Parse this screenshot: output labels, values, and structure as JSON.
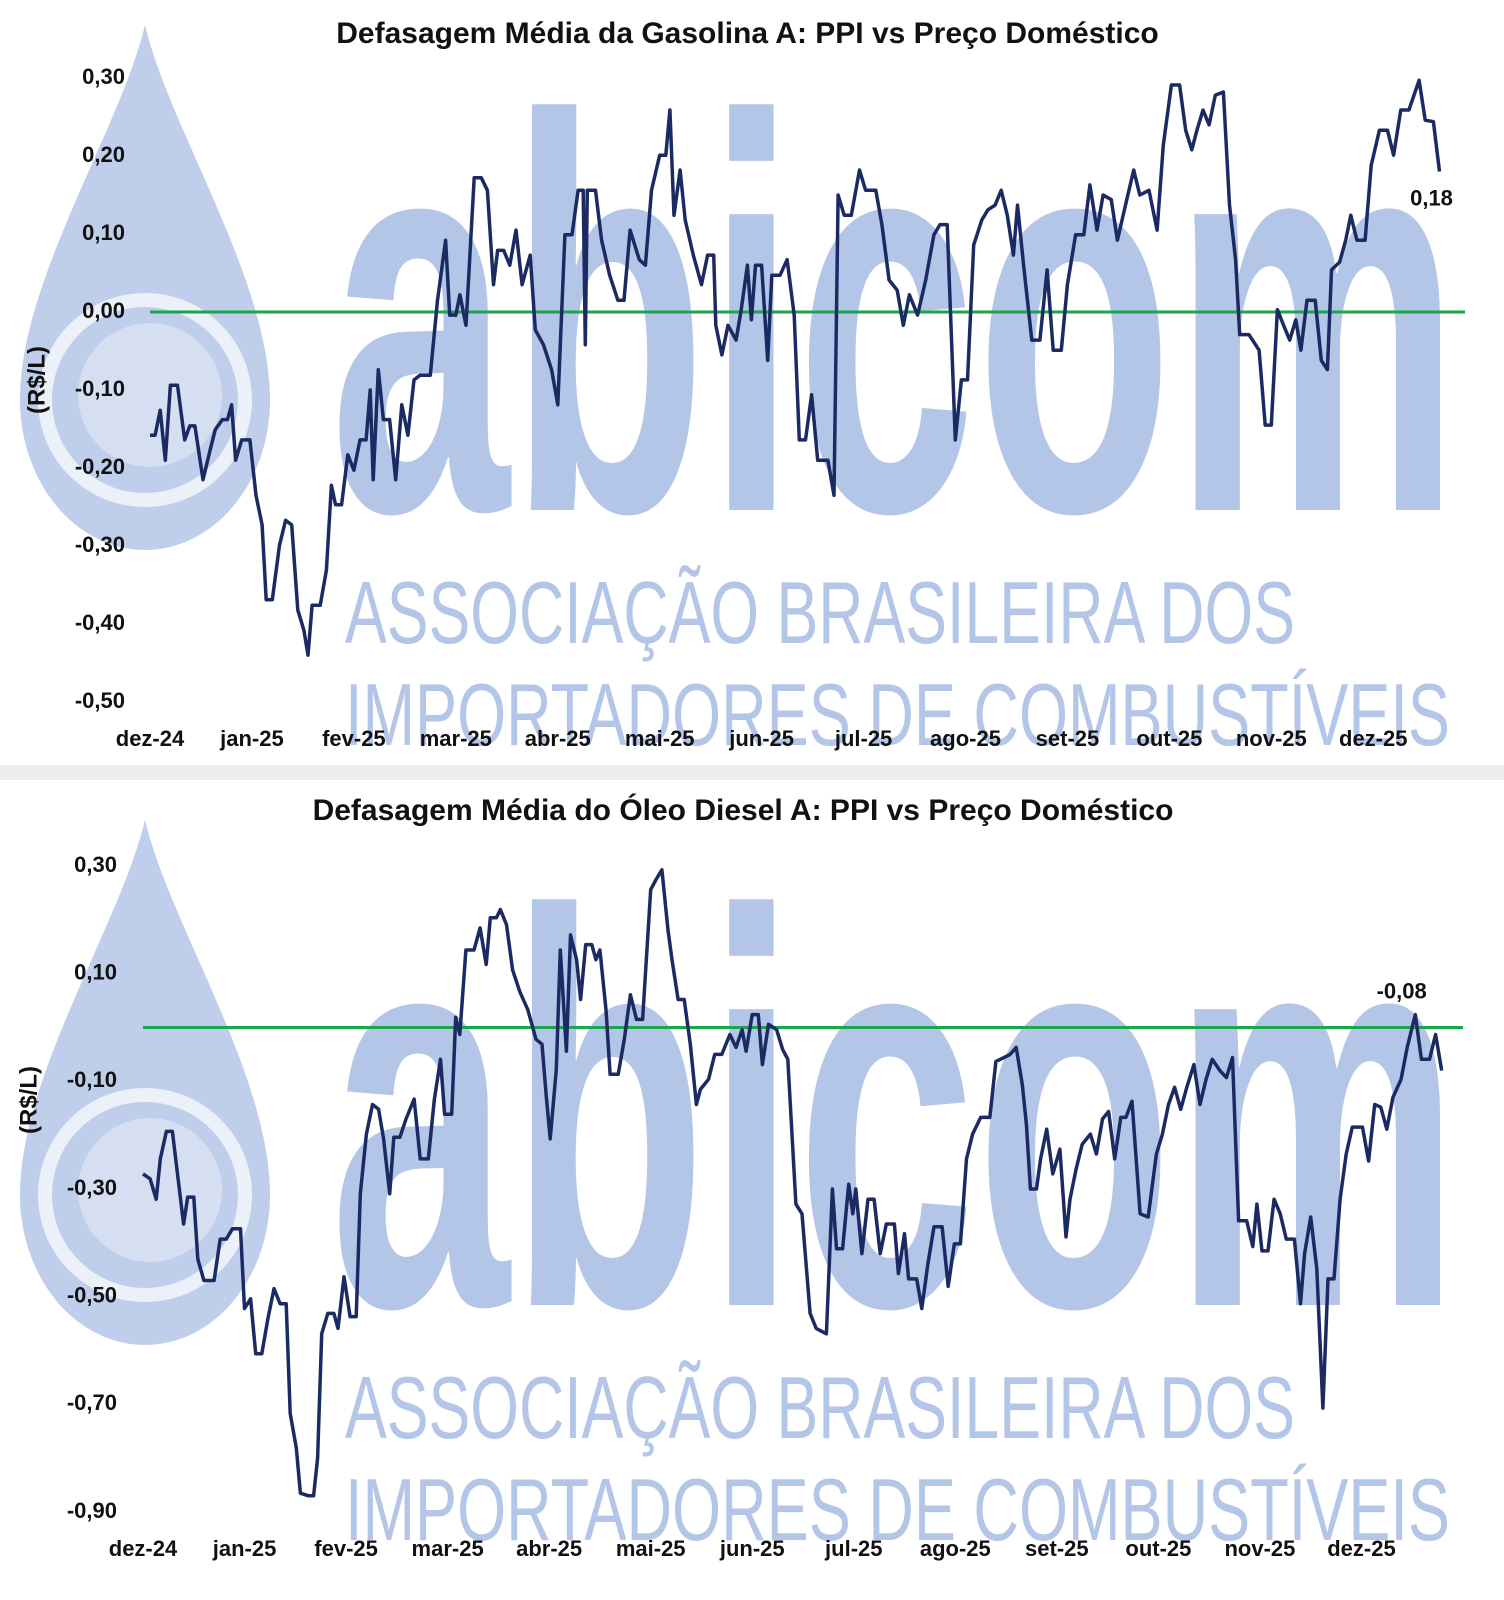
{
  "chart_data": [
    {
      "type": "line",
      "title": "Defasagem Média da Gasolina A: PPI vs Preço Doméstico",
      "y_label": "(R$/L)",
      "watermark": [
        "abicom",
        "ASSOCIAÇÃO BRASILEIRA DOS",
        "IMPORTADORES DE COMBUSTÍVEIS"
      ],
      "color": "#1b2a63",
      "xlim": [
        0,
        12.9
      ],
      "xticks": [
        {
          "value": 0,
          "label": "dez-24"
        },
        {
          "value": 1,
          "label": "jan-25"
        },
        {
          "value": 2,
          "label": "fev-25"
        },
        {
          "value": 3,
          "label": "mar-25"
        },
        {
          "value": 4,
          "label": "abr-25"
        },
        {
          "value": 5,
          "label": "mai-25"
        },
        {
          "value": 6,
          "label": "jun-25"
        },
        {
          "value": 7,
          "label": "jul-25"
        },
        {
          "value": 8,
          "label": "ago-25"
        },
        {
          "value": 9,
          "label": "set-25"
        },
        {
          "value": 10,
          "label": "out-25"
        },
        {
          "value": 11,
          "label": "nov-25"
        },
        {
          "value": 12,
          "label": "dez-25"
        }
      ],
      "ylim": [
        -0.5,
        0.3
      ],
      "yticks": [
        {
          "value": 0.3,
          "label": "0,30"
        },
        {
          "value": 0.2,
          "label": "0,20"
        },
        {
          "value": 0.1,
          "label": "0,10"
        },
        {
          "value": 0,
          "label": "0,00"
        },
        {
          "value": -0.1,
          "label": "-0,10"
        },
        {
          "value": -0.2,
          "label": "-0,20"
        },
        {
          "value": -0.3,
          "label": "-0,30"
        },
        {
          "value": -0.4,
          "label": "-0,40"
        },
        {
          "value": -0.5,
          "label": "-0,50"
        }
      ],
      "grid": false,
      "reference_line": {
        "value": 0,
        "color": "#1aa64a"
      },
      "annotation": {
        "text": "0,18",
        "value": 0.18,
        "color": "#1aa64a"
      },
      "x": [
        0,
        0.05,
        0.1,
        0.15,
        0.2,
        0.27,
        0.34,
        0.39,
        0.44,
        0.52,
        0.59,
        0.64,
        0.71,
        0.76,
        0.8,
        0.84,
        0.9,
        0.98,
        1.04,
        1.1,
        1.14,
        1.2,
        1.27,
        1.33,
        1.39,
        1.45,
        1.51,
        1.55,
        1.59,
        1.67,
        1.73,
        1.78,
        1.82,
        1.88,
        1.94,
        2,
        2.06,
        2.12,
        2.16,
        2.19,
        2.24,
        2.29,
        2.35,
        2.41,
        2.47,
        2.53,
        2.59,
        2.65,
        2.75,
        2.82,
        2.9,
        2.94,
        3,
        3.04,
        3.1,
        3.18,
        3.25,
        3.31,
        3.37,
        3.41,
        3.47,
        3.53,
        3.59,
        3.65,
        3.73,
        3.78,
        3.86,
        3.94,
        4,
        4.07,
        4.14,
        4.2,
        4.25,
        4.27,
        4.29,
        4.37,
        4.43,
        4.51,
        4.59,
        4.65,
        4.71,
        4.8,
        4.86,
        4.92,
        5,
        5.06,
        5.1,
        5.14,
        5.2,
        5.25,
        5.33,
        5.41,
        5.47,
        5.53,
        5.55,
        5.61,
        5.67,
        5.75,
        5.8,
        5.86,
        5.9,
        5.94,
        6,
        6.06,
        6.1,
        6.18,
        6.25,
        6.32,
        6.37,
        6.43,
        6.49,
        6.55,
        6.65,
        6.71,
        6.75,
        6.81,
        6.88,
        6.96,
        7.02,
        7.12,
        7.18,
        7.25,
        7.33,
        7.39,
        7.45,
        7.53,
        7.61,
        7.69,
        7.75,
        7.82,
        7.9,
        7.96,
        8.02,
        8.08,
        8.16,
        8.22,
        8.29,
        8.35,
        8.41,
        8.47,
        8.51,
        8.57,
        8.65,
        8.73,
        8.8,
        8.86,
        8.94,
        9,
        9.08,
        9.16,
        9.22,
        9.29,
        9.35,
        9.43,
        9.49,
        9.57,
        9.65,
        9.71,
        9.8,
        9.88,
        9.94,
        10.02,
        10.1,
        10.16,
        10.22,
        10.27,
        10.33,
        10.39,
        10.45,
        10.53,
        10.59,
        10.65,
        10.69,
        10.78,
        10.88,
        10.94,
        11,
        11.06,
        11.12,
        11.18,
        11.24,
        11.29,
        11.35,
        11.43,
        11.49,
        11.55,
        11.59,
        11.67,
        11.73,
        11.78,
        11.84,
        11.92,
        11.98,
        12.06,
        12.14,
        12.2,
        12.27,
        12.35,
        12.45,
        12.51,
        12.59,
        12.65
      ],
      "values": [
        -0.158,
        -0.158,
        -0.126,
        -0.19,
        -0.094,
        -0.094,
        -0.164,
        -0.146,
        -0.146,
        -0.215,
        -0.177,
        -0.151,
        -0.138,
        -0.138,
        -0.119,
        -0.19,
        -0.164,
        -0.164,
        -0.235,
        -0.273,
        -0.369,
        -0.369,
        -0.299,
        -0.267,
        -0.273,
        -0.382,
        -0.408,
        -0.44,
        -0.376,
        -0.376,
        -0.331,
        -0.222,
        -0.247,
        -0.247,
        -0.183,
        -0.203,
        -0.164,
        -0.164,
        -0.1,
        -0.215,
        -0.074,
        -0.138,
        -0.138,
        -0.215,
        -0.119,
        -0.158,
        -0.087,
        -0.081,
        -0.081,
        0.015,
        0.092,
        -0.004,
        -0.004,
        0.022,
        -0.017,
        0.172,
        0.172,
        0.156,
        0.035,
        0.079,
        0.079,
        0.06,
        0.105,
        0.035,
        0.073,
        -0.023,
        -0.042,
        -0.074,
        -0.119,
        0.099,
        0.099,
        0.156,
        0.156,
        -0.042,
        0.156,
        0.156,
        0.092,
        0.047,
        0.015,
        0.015,
        0.105,
        0.067,
        0.06,
        0.156,
        0.201,
        0.201,
        0.259,
        0.124,
        0.182,
        0.118,
        0.073,
        0.035,
        0.073,
        0.073,
        -0.017,
        -0.055,
        -0.017,
        -0.036,
        0.003,
        0.06,
        -0.01,
        0.06,
        0.06,
        -0.062,
        0.047,
        0.047,
        0.067,
        -0.004,
        -0.164,
        -0.164,
        -0.106,
        -0.19,
        -0.19,
        -0.235,
        0.15,
        0.124,
        0.124,
        0.182,
        0.156,
        0.156,
        0.112,
        0.041,
        0.028,
        -0.017,
        0.022,
        -0.004,
        0.041,
        0.099,
        0.112,
        0.112,
        -0.164,
        -0.087,
        -0.087,
        0.086,
        0.118,
        0.131,
        0.137,
        0.156,
        0.124,
        0.073,
        0.137,
        0.06,
        -0.036,
        -0.036,
        0.054,
        -0.049,
        -0.049,
        0.035,
        0.099,
        0.099,
        0.163,
        0.105,
        0.15,
        0.144,
        0.092,
        0.137,
        0.182,
        0.15,
        0.156,
        0.105,
        0.214,
        0.291,
        0.291,
        0.233,
        0.208,
        0.233,
        0.259,
        0.24,
        0.278,
        0.282,
        0.137,
        0.067,
        -0.029,
        -0.029,
        -0.049,
        -0.145,
        -0.145,
        0.003,
        -0.017,
        -0.036,
        -0.01,
        -0.049,
        0.015,
        0.015,
        -0.062,
        -0.074,
        0.054,
        0.064,
        0.092,
        0.124,
        0.092,
        0.092,
        0.188,
        0.233,
        0.233,
        0.201,
        0.259,
        0.259,
        0.297,
        0.246,
        0.244,
        0.18
      ]
    },
    {
      "type": "line",
      "title": "Defasagem Média do Óleo Diesel A: PPI vs Preço Doméstico",
      "y_label": "(R$/L)",
      "watermark": [
        "abicom",
        "ASSOCIAÇÃO BRASILEIRA DOS",
        "IMPORTADORES DE COMBUSTÍVEIS"
      ],
      "color": "#1b2a63",
      "xlim": [
        0,
        13
      ],
      "xticks": [
        {
          "value": 0,
          "label": "dez-24"
        },
        {
          "value": 1,
          "label": "jan-25"
        },
        {
          "value": 2,
          "label": "fev-25"
        },
        {
          "value": 3,
          "label": "mar-25"
        },
        {
          "value": 4,
          "label": "abr-25"
        },
        {
          "value": 5,
          "label": "mai-25"
        },
        {
          "value": 6,
          "label": "jun-25"
        },
        {
          "value": 7,
          "label": "jul-25"
        },
        {
          "value": 8,
          "label": "ago-25"
        },
        {
          "value": 9,
          "label": "set-25"
        },
        {
          "value": 10,
          "label": "out-25"
        },
        {
          "value": 11,
          "label": "nov-25"
        },
        {
          "value": 12,
          "label": "dez-25"
        }
      ],
      "ylim": [
        -0.9,
        0.3
      ],
      "yticks": [
        {
          "value": 0.3,
          "label": "0,30"
        },
        {
          "value": 0.1,
          "label": "0,10"
        },
        {
          "value": -0.1,
          "label": "-0,10"
        },
        {
          "value": -0.3,
          "label": "-0,30"
        },
        {
          "value": -0.5,
          "label": "-0,50"
        },
        {
          "value": -0.7,
          "label": "-0,70"
        },
        {
          "value": -0.9,
          "label": "-0,90"
        }
      ],
      "grid": false,
      "reference_line": {
        "value": 0,
        "color": "#1aa64a"
      },
      "annotation": {
        "text": "-0,08",
        "value": -0.08,
        "color": "#e3211c"
      },
      "x": [
        0,
        0.07,
        0.13,
        0.17,
        0.23,
        0.29,
        0.34,
        0.4,
        0.44,
        0.5,
        0.54,
        0.6,
        0.7,
        0.76,
        0.82,
        0.88,
        0.96,
        1,
        1.06,
        1.11,
        1.17,
        1.23,
        1.29,
        1.35,
        1.41,
        1.45,
        1.51,
        1.55,
        1.63,
        1.68,
        1.72,
        1.76,
        1.82,
        1.88,
        1.92,
        1.98,
        2.04,
        2.1,
        2.14,
        2.2,
        2.26,
        2.32,
        2.37,
        2.43,
        2.47,
        2.53,
        2.59,
        2.67,
        2.73,
        2.81,
        2.87,
        2.93,
        2.97,
        3.04,
        3.08,
        3.12,
        3.18,
        3.26,
        3.32,
        3.38,
        3.42,
        3.48,
        3.52,
        3.58,
        3.64,
        3.71,
        3.79,
        3.87,
        3.93,
        3.97,
        4.01,
        4.07,
        4.11,
        4.17,
        4.21,
        4.27,
        4.31,
        4.36,
        4.42,
        4.46,
        4.5,
        4.56,
        4.6,
        4.68,
        4.74,
        4.8,
        4.86,
        4.92,
        5,
        5.05,
        5.11,
        5.17,
        5.21,
        5.27,
        5.33,
        5.39,
        5.45,
        5.49,
        5.57,
        5.63,
        5.7,
        5.78,
        5.84,
        5.9,
        5.94,
        6,
        6.06,
        6.1,
        6.16,
        6.24,
        6.3,
        6.35,
        6.43,
        6.49,
        6.57,
        6.63,
        6.73,
        6.79,
        6.83,
        6.89,
        6.95,
        6.99,
        7.02,
        7.08,
        7.14,
        7.2,
        7.26,
        7.32,
        7.4,
        7.44,
        7.5,
        7.54,
        7.62,
        7.67,
        7.73,
        7.79,
        7.87,
        7.93,
        7.99,
        8.05,
        8.11,
        8.17,
        8.25,
        8.34,
        8.4,
        8.48,
        8.54,
        8.6,
        8.66,
        8.7,
        8.74,
        8.8,
        8.84,
        8.9,
        8.96,
        9.03,
        9.09,
        9.13,
        9.19,
        9.25,
        9.33,
        9.39,
        9.45,
        9.51,
        9.57,
        9.63,
        9.68,
        9.74,
        9.82,
        9.9,
        9.98,
        10.04,
        10.1,
        10.16,
        10.22,
        10.28,
        10.35,
        10.41,
        10.47,
        10.53,
        10.61,
        10.67,
        10.73,
        10.79,
        10.87,
        10.93,
        10.97,
        11.02,
        11.08,
        11.14,
        11.2,
        11.26,
        11.34,
        11.4,
        11.44,
        11.5,
        11.56,
        11.62,
        11.67,
        11.73,
        11.79,
        11.85,
        11.91,
        12.01,
        12.07,
        12.13,
        12.19,
        12.25,
        12.31,
        12.39,
        12.45,
        12.53,
        12.59,
        12.67,
        12.73,
        12.79
      ],
      "values": [
        -0.272,
        -0.281,
        -0.319,
        -0.244,
        -0.193,
        -0.193,
        -0.272,
        -0.365,
        -0.315,
        -0.315,
        -0.43,
        -0.47,
        -0.47,
        -0.393,
        -0.393,
        -0.374,
        -0.374,
        -0.522,
        -0.504,
        -0.606,
        -0.606,
        -0.541,
        -0.485,
        -0.513,
        -0.513,
        -0.717,
        -0.781,
        -0.865,
        -0.87,
        -0.87,
        -0.8,
        -0.569,
        -0.531,
        -0.531,
        -0.559,
        -0.463,
        -0.537,
        -0.537,
        -0.309,
        -0.198,
        -0.143,
        -0.152,
        -0.207,
        -0.309,
        -0.204,
        -0.204,
        -0.17,
        -0.133,
        -0.244,
        -0.244,
        -0.133,
        -0.059,
        -0.161,
        -0.161,
        0.019,
        -0.013,
        0.144,
        0.144,
        0.185,
        0.117,
        0.204,
        0.204,
        0.219,
        0.191,
        0.107,
        0.067,
        0.033,
        -0.022,
        -0.031,
        -0.124,
        -0.207,
        -0.078,
        0.144,
        -0.044,
        0.172,
        0.126,
        0.052,
        0.154,
        0.154,
        0.126,
        0.144,
        0.033,
        -0.087,
        -0.087,
        -0.022,
        0.061,
        0.015,
        0.015,
        0.256,
        0.274,
        0.293,
        0.181,
        0.126,
        0.052,
        0.052,
        -0.031,
        -0.143,
        -0.115,
        -0.096,
        -0.05,
        -0.05,
        -0.013,
        -0.037,
        -0.004,
        -0.044,
        0.024,
        0.024,
        -0.069,
        0.006,
        -0.004,
        -0.041,
        -0.059,
        -0.328,
        -0.346,
        -0.531,
        -0.559,
        -0.569,
        -0.3,
        -0.411,
        -0.411,
        -0.291,
        -0.346,
        -0.3,
        -0.42,
        -0.319,
        -0.319,
        -0.42,
        -0.365,
        -0.365,
        -0.457,
        -0.383,
        -0.467,
        -0.467,
        -0.522,
        -0.439,
        -0.37,
        -0.37,
        -0.481,
        -0.402,
        -0.402,
        -0.244,
        -0.198,
        -0.167,
        -0.167,
        -0.063,
        -0.056,
        -0.05,
        -0.037,
        -0.106,
        -0.18,
        -0.3,
        -0.3,
        -0.244,
        -0.189,
        -0.272,
        -0.226,
        -0.389,
        -0.319,
        -0.263,
        -0.217,
        -0.198,
        -0.235,
        -0.17,
        -0.156,
        -0.244,
        -0.167,
        -0.167,
        -0.137,
        -0.346,
        -0.352,
        -0.235,
        -0.198,
        -0.143,
        -0.111,
        -0.152,
        -0.111,
        -0.069,
        -0.143,
        -0.096,
        -0.059,
        -0.081,
        -0.093,
        -0.056,
        -0.359,
        -0.359,
        -0.407,
        -0.328,
        -0.415,
        -0.415,
        -0.319,
        -0.346,
        -0.393,
        -0.393,
        -0.513,
        -0.42,
        -0.352,
        -0.448,
        -0.707,
        -0.467,
        -0.467,
        -0.319,
        -0.235,
        -0.185,
        -0.185,
        -0.248,
        -0.143,
        -0.148,
        -0.189,
        -0.13,
        -0.096,
        -0.037,
        0.024,
        -0.059,
        -0.059,
        -0.013,
        -0.08
      ]
    }
  ]
}
